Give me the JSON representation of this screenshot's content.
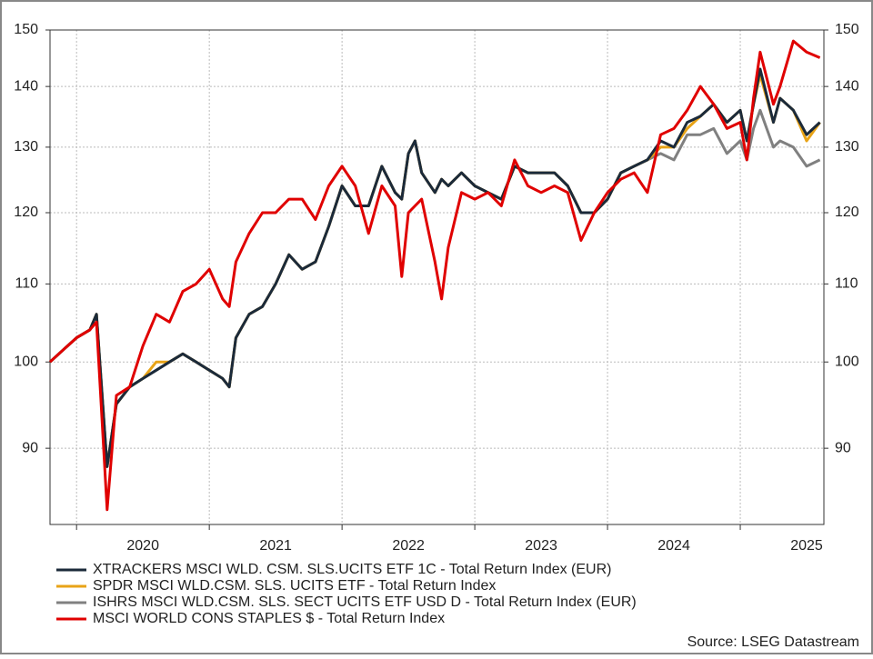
{
  "chart_data": {
    "type": "line",
    "yscale": "log",
    "grid": true,
    "mirror_y_axis": true,
    "legend_position": "bottom",
    "source": "Source: LSEG Datastream",
    "xlim": [
      2019.8,
      2025.63
    ],
    "xticks": [
      2020,
      2021,
      2022,
      2023,
      2024,
      2025
    ],
    "ylim": [
      82,
      150
    ],
    "yticks": [
      90,
      100,
      110,
      120,
      130,
      140,
      150
    ],
    "x": [
      2019.8,
      2019.9,
      2020.0,
      2020.1,
      2020.15,
      2020.23,
      2020.3,
      2020.4,
      2020.5,
      2020.6,
      2020.7,
      2020.8,
      2020.9,
      2021.0,
      2021.1,
      2021.15,
      2021.2,
      2021.3,
      2021.4,
      2021.5,
      2021.6,
      2021.7,
      2021.8,
      2021.9,
      2022.0,
      2022.1,
      2022.2,
      2022.3,
      2022.4,
      2022.45,
      2022.5,
      2022.55,
      2022.6,
      2022.7,
      2022.75,
      2022.8,
      2022.9,
      2023.0,
      2023.1,
      2023.2,
      2023.3,
      2023.4,
      2023.5,
      2023.6,
      2023.7,
      2023.8,
      2023.9,
      2024.0,
      2024.1,
      2024.2,
      2024.3,
      2024.4,
      2024.5,
      2024.6,
      2024.7,
      2024.8,
      2024.9,
      2025.0,
      2025.05,
      2025.1,
      2025.15,
      2025.25,
      2025.3,
      2025.4,
      2025.5,
      2025.6
    ],
    "series": [
      {
        "name": "XTRACKERS MSCI WLD. CSM. SLS.UCITS ETF 1C - Total Return Index (EUR)",
        "color": "#1b2a3a",
        "values": [
          100,
          101.5,
          103,
          104,
          106,
          88,
          95,
          97,
          98,
          99,
          100,
          101,
          100,
          99,
          98,
          97,
          103,
          106,
          107,
          110,
          114,
          112,
          113,
          118,
          124,
          121,
          121,
          127,
          123,
          122,
          129,
          131,
          126,
          123,
          125,
          124,
          126,
          124,
          123,
          122,
          127,
          126,
          126,
          126,
          124,
          120,
          120,
          122,
          126,
          127,
          128,
          131,
          130,
          134,
          135,
          137,
          134,
          136,
          131,
          137,
          143,
          134,
          138,
          136,
          132,
          134
        ]
      },
      {
        "name": "SPDR MSCI WLD.CSM. SLS. UCITS ETF - Total Return Index",
        "color": "#e8a317",
        "values": [
          100,
          101.5,
          103,
          104,
          106,
          88,
          95,
          97,
          98,
          100,
          100,
          101,
          100,
          99,
          98,
          97,
          103,
          106,
          107,
          110,
          114,
          112,
          113,
          118,
          124,
          121,
          121,
          127,
          123,
          122,
          129,
          131,
          126,
          123,
          125,
          124,
          126,
          124,
          123,
          122,
          127,
          126,
          126,
          126,
          124,
          120,
          120,
          122,
          126,
          127,
          128,
          130,
          130,
          133,
          135,
          137,
          134,
          136,
          131,
          137,
          142,
          134,
          138,
          136,
          131,
          134
        ]
      },
      {
        "name": "ISHRS MSCI WLD.CSM. SLS. SECT UCITS ETF USD D - Total Return Index (EUR)",
        "color": "#808080",
        "values": [
          100,
          101.5,
          103,
          104,
          106,
          88,
          95,
          97,
          98,
          99,
          100,
          101,
          100,
          99,
          98,
          97,
          103,
          106,
          107,
          110,
          114,
          112,
          113,
          118,
          124,
          121,
          121,
          127,
          123,
          122,
          129,
          131,
          126,
          123,
          125,
          124,
          126,
          124,
          123,
          122,
          127,
          126,
          126,
          126,
          124,
          120,
          120,
          122,
          126,
          127,
          128,
          129,
          128,
          132,
          132,
          133,
          129,
          131,
          128,
          133,
          136,
          130,
          131,
          130,
          127,
          128
        ]
      },
      {
        "name": "MSCI WORLD CONS STAPLES $ - Total Return Index",
        "color": "#e00000",
        "values": [
          100,
          101.5,
          103,
          104,
          105,
          83.5,
          96,
          97,
          102,
          106,
          105,
          109,
          110,
          112,
          108,
          107,
          113,
          117,
          120,
          120,
          122,
          122,
          119,
          124,
          127,
          124,
          117,
          124,
          121,
          111,
          120,
          121,
          122,
          113,
          108,
          115,
          123,
          122,
          123,
          121,
          128,
          124,
          123,
          124,
          123,
          116,
          120,
          123,
          125,
          126,
          123,
          132,
          133,
          136,
          140,
          137,
          133,
          134,
          128,
          138,
          146,
          137,
          140,
          148,
          146,
          145
        ]
      }
    ]
  }
}
